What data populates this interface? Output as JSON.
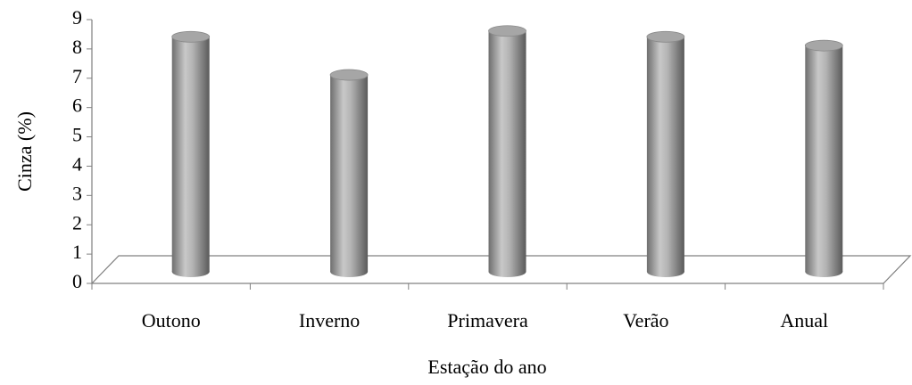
{
  "chart_data": {
    "type": "bar",
    "x_label": "Estação do ano",
    "y_label": "Cinza (%)",
    "categories": [
      "Outono",
      "Inverno",
      "Primavera",
      "Verão",
      "Anual"
    ],
    "values": [
      8.2,
      6.9,
      8.4,
      8.2,
      7.9
    ],
    "color": "#a6a6a6",
    "ylim": [
      0,
      9
    ],
    "yticks": [
      0,
      1,
      2,
      3,
      4,
      5,
      6,
      7,
      8,
      9
    ],
    "grid": false
  }
}
